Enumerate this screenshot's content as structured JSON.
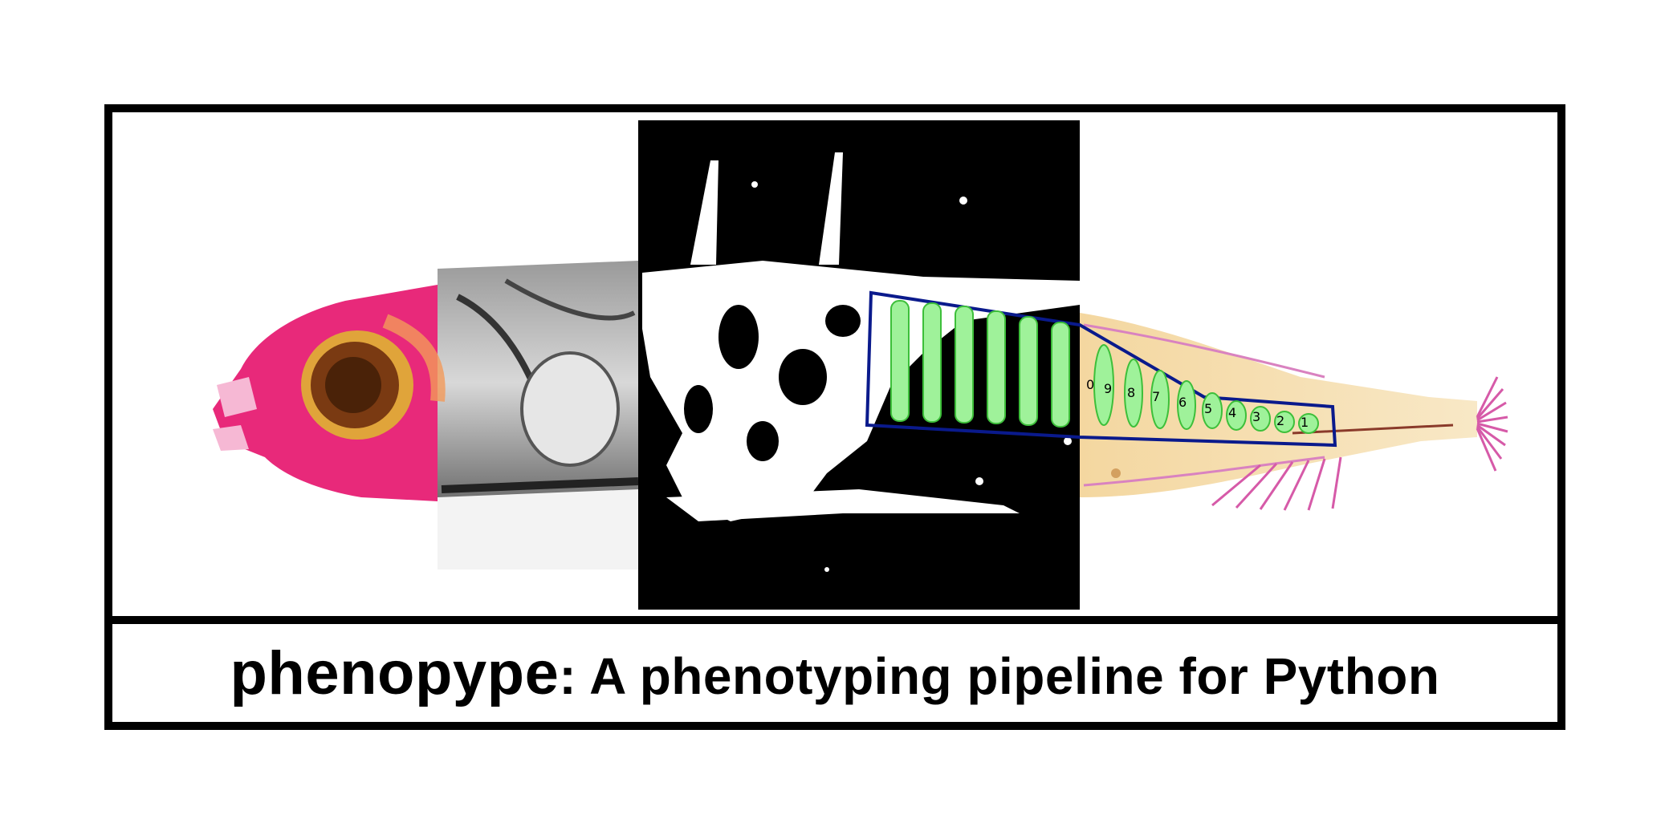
{
  "logo": {
    "title_brand": "phenopype",
    "title_rest": ": A phenotyping pipeline for Python",
    "vertebra_labels": [
      "0",
      "9",
      "8",
      "7",
      "6",
      "5",
      "4",
      "3",
      "2",
      "1"
    ]
  },
  "colors": {
    "frame": "#000000",
    "stain_pink": "#e8297a",
    "eye_orange": "#e0a43a",
    "mask_green": "#9ff29a",
    "polygon_blue": "#0a1a8c",
    "body_tan": "#f3d9a3"
  }
}
